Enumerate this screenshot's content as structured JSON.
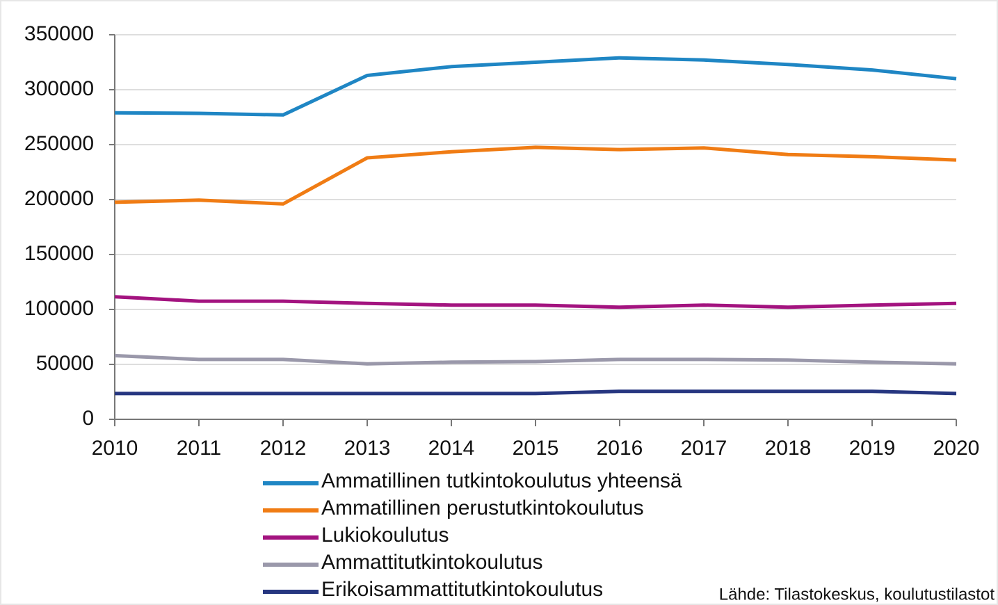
{
  "chart_data": {
    "type": "line",
    "categories": [
      "2010",
      "2011",
      "2012",
      "2013",
      "2014",
      "2015",
      "2016",
      "2017",
      "2018",
      "2019",
      "2020"
    ],
    "series": [
      {
        "name": "Ammatillinen tutkintokoulutus yhteensä",
        "color": "#1f86c4",
        "values": [
          279000,
          278500,
          277000,
          313000,
          321000,
          325000,
          329000,
          327000,
          323000,
          318000,
          310000
        ]
      },
      {
        "name": "Ammatillinen perustutkintokoulutus",
        "color": "#f07c14",
        "values": [
          197500,
          199500,
          196000,
          238000,
          243500,
          247500,
          245500,
          247000,
          241000,
          239000,
          236000
        ]
      },
      {
        "name": "Lukiokoulutus",
        "color": "#a3137f",
        "values": [
          111500,
          107500,
          107500,
          105500,
          104000,
          104000,
          102000,
          104000,
          102000,
          104000,
          105500
        ]
      },
      {
        "name": "Ammattitutkintokoulutus",
        "color": "#9a98aa",
        "values": [
          58000,
          54500,
          54500,
          50500,
          52000,
          52500,
          54500,
          54500,
          54000,
          52000,
          50500
        ]
      },
      {
        "name": "Erikoisammattitutkintokoulutus",
        "color": "#263680",
        "values": [
          23500,
          23500,
          23500,
          23500,
          23500,
          23500,
          25500,
          25500,
          25500,
          25500,
          23500
        ]
      }
    ],
    "ylim": [
      0,
      350000
    ],
    "yticks": [
      0,
      50000,
      100000,
      150000,
      200000,
      250000,
      300000,
      350000
    ],
    "grid": true,
    "legend": "bottom-left",
    "source": "Lähde: Tilastokeskus, koulutustilastot"
  }
}
